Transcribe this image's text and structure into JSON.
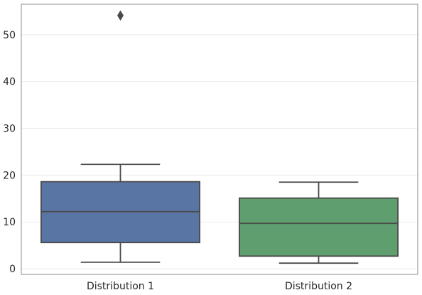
{
  "chart_data": {
    "type": "box",
    "title": "",
    "xlabel": "",
    "ylabel": "",
    "ylim": [
      -1.2,
      56.5
    ],
    "yticks": [
      0,
      10,
      20,
      30,
      40,
      50
    ],
    "grid": true,
    "categories": [
      "Distribution 1",
      "Distribution 2"
    ],
    "boxes": [
      {
        "category": "Distribution 1",
        "whisker_low": 1.4,
        "q1": 5.6,
        "median": 12.2,
        "q3": 18.6,
        "whisker_high": 22.3,
        "outliers": [
          54.1
        ],
        "color": "#5875a4"
      },
      {
        "category": "Distribution 2",
        "whisker_low": 1.2,
        "q1": 2.7,
        "median": 9.7,
        "q3": 15.1,
        "whisker_high": 18.5,
        "outliers": [],
        "color": "#5f9e6e"
      }
    ]
  },
  "style": {
    "frame_color": "#8c8c8c",
    "grid_color": "#ebebeb",
    "line_color": "#4a4a4a"
  }
}
